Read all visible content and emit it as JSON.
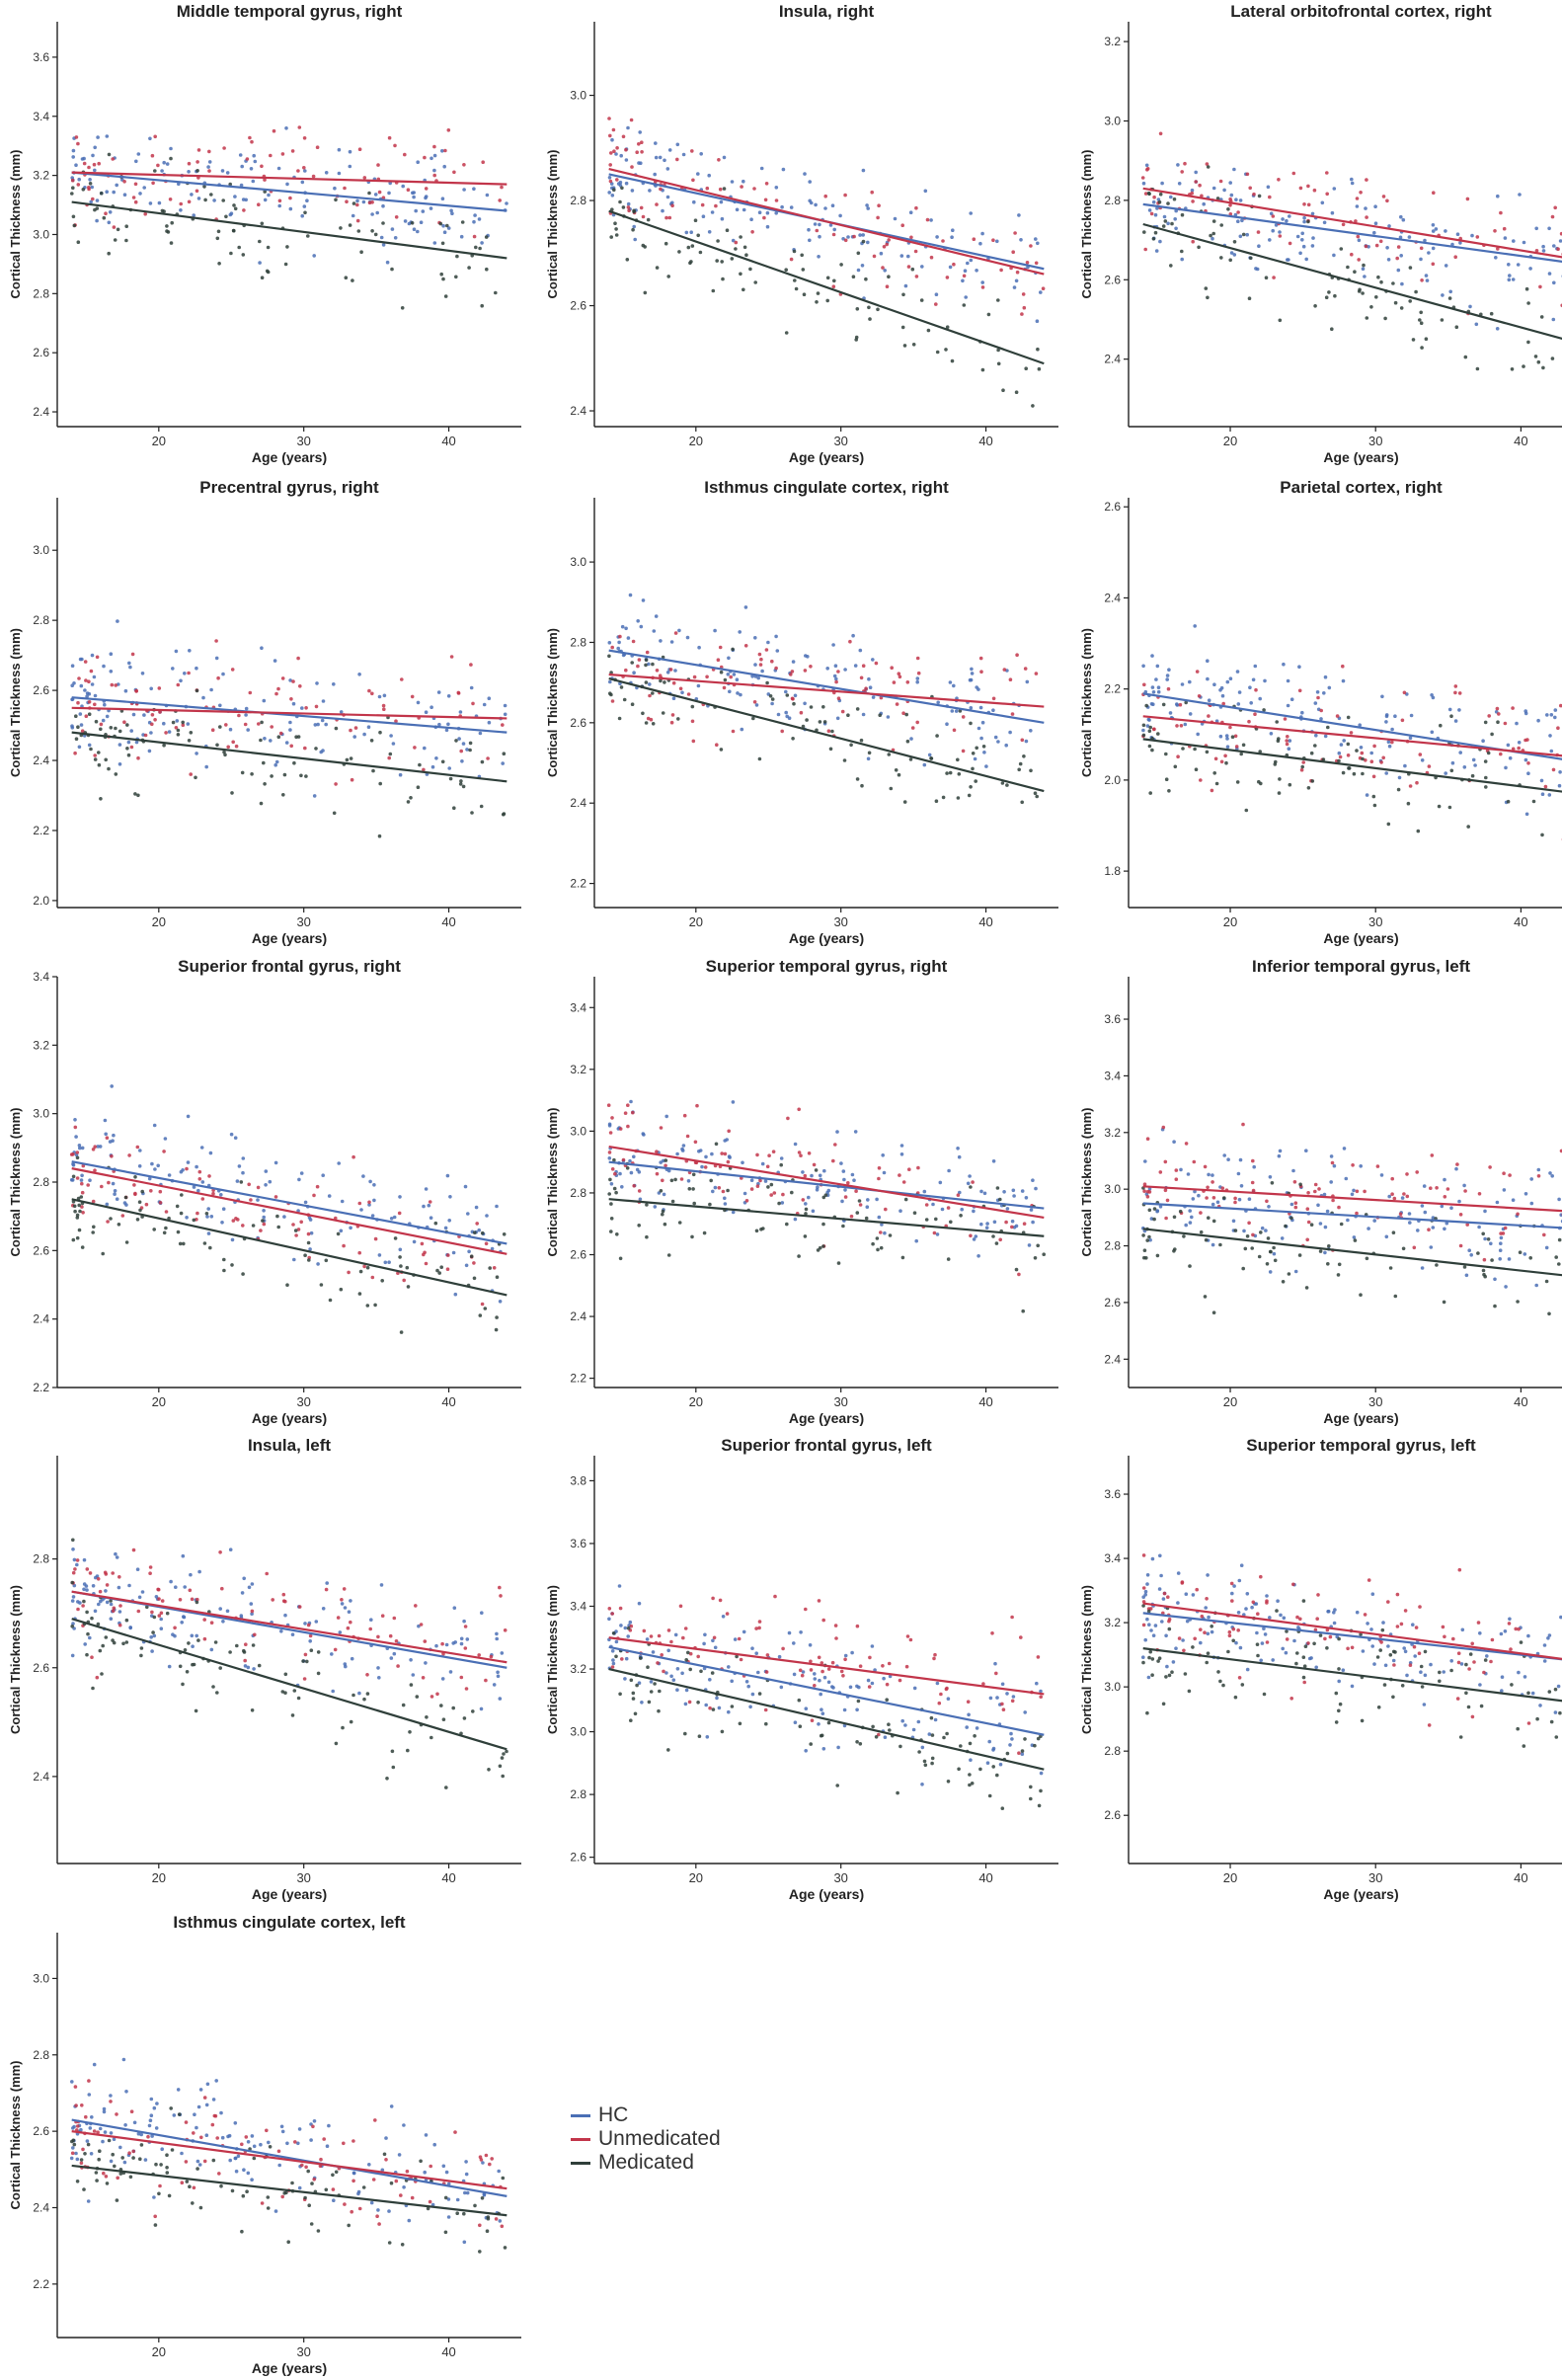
{
  "chart_data": [
    {
      "type": "scatter",
      "title": "Middle temporal gyrus, right",
      "xlabel": "Age (years)",
      "ylabel": "Cortical Thickness (mm)",
      "xlim": [
        13,
        45
      ],
      "ylim": [
        2.35,
        3.72
      ],
      "xticks": [
        20,
        30,
        40
      ],
      "yticks": [
        2.4,
        2.6,
        2.8,
        3.0,
        3.2,
        3.4,
        3.6
      ],
      "ytick_labels": [
        "2.4",
        "2.6",
        "2.8",
        "3.0",
        "3.2",
        "3.4",
        "3.6"
      ],
      "series": [
        {
          "name": "HC",
          "line": [
            [
              14,
              3.21
            ],
            [
              44,
              3.08
            ]
          ]
        },
        {
          "name": "Unmedicated",
          "line": [
            [
              14,
              3.21
            ],
            [
              44,
              3.17
            ]
          ]
        },
        {
          "name": "Medicated",
          "line": [
            [
              14,
              3.11
            ],
            [
              44,
              2.92
            ]
          ]
        }
      ]
    },
    {
      "type": "scatter",
      "title": "Insula, right",
      "xlabel": "Age (years)",
      "ylabel": "Cortical Thickness (mm)",
      "xlim": [
        13,
        45
      ],
      "ylim": [
        2.37,
        3.14
      ],
      "xticks": [
        20,
        30,
        40
      ],
      "yticks": [
        2.4,
        2.6,
        2.8,
        3.0
      ],
      "ytick_labels": [
        "2.4",
        "2.6",
        "2.8",
        "3.0"
      ],
      "series": [
        {
          "name": "HC",
          "line": [
            [
              14,
              2.85
            ],
            [
              44,
              2.67
            ]
          ]
        },
        {
          "name": "Unmedicated",
          "line": [
            [
              14,
              2.86
            ],
            [
              44,
              2.66
            ]
          ]
        },
        {
          "name": "Medicated",
          "line": [
            [
              14,
              2.78
            ],
            [
              44,
              2.49
            ]
          ]
        }
      ]
    },
    {
      "type": "scatter",
      "title": "Lateral orbitofrontal cortex, right",
      "xlabel": "Age (years)",
      "ylabel": "Cortical Thickness (mm)",
      "xlim": [
        13,
        45
      ],
      "ylim": [
        2.23,
        3.25
      ],
      "xticks": [
        20,
        30,
        40
      ],
      "yticks": [
        2.4,
        2.6,
        2.8,
        3.0,
        3.2
      ],
      "ytick_labels": [
        "2.4",
        "2.6",
        "2.8",
        "3.0",
        "3.2"
      ],
      "series": [
        {
          "name": "HC",
          "line": [
            [
              14,
              2.79
            ],
            [
              44,
              2.64
            ]
          ]
        },
        {
          "name": "Unmedicated",
          "line": [
            [
              14,
              2.83
            ],
            [
              44,
              2.65
            ]
          ]
        },
        {
          "name": "Medicated",
          "line": [
            [
              14,
              2.74
            ],
            [
              44,
              2.44
            ]
          ]
        }
      ]
    },
    {
      "type": "scatter",
      "title": "Precentral gyrus, right",
      "xlabel": "Age (years)",
      "ylabel": "Cortical Thickness (mm)",
      "xlim": [
        13,
        45
      ],
      "ylim": [
        1.98,
        3.15
      ],
      "xticks": [
        20,
        30,
        40
      ],
      "yticks": [
        2.0,
        2.2,
        2.4,
        2.6,
        2.8,
        3.0
      ],
      "ytick_labels": [
        "2.0",
        "2.2",
        "2.4",
        "2.6",
        "2.8",
        "3.0"
      ],
      "series": [
        {
          "name": "HC",
          "line": [
            [
              14,
              2.58
            ],
            [
              44,
              2.48
            ]
          ]
        },
        {
          "name": "Unmedicated",
          "line": [
            [
              14,
              2.55
            ],
            [
              44,
              2.52
            ]
          ]
        },
        {
          "name": "Medicated",
          "line": [
            [
              14,
              2.48
            ],
            [
              44,
              2.34
            ]
          ]
        }
      ]
    },
    {
      "type": "scatter",
      "title": "Isthmus cingulate cortex, right",
      "xlabel": "Age (years)",
      "ylabel": "Cortical Thickness (mm)",
      "xlim": [
        13,
        45
      ],
      "ylim": [
        2.14,
        3.16
      ],
      "xticks": [
        20,
        30,
        40
      ],
      "yticks": [
        2.2,
        2.4,
        2.6,
        2.8,
        3.0
      ],
      "ytick_labels": [
        "2.2",
        "2.4",
        "2.6",
        "2.8",
        "3.0"
      ],
      "series": [
        {
          "name": "HC",
          "line": [
            [
              14,
              2.78
            ],
            [
              44,
              2.6
            ]
          ]
        },
        {
          "name": "Unmedicated",
          "line": [
            [
              14,
              2.72
            ],
            [
              44,
              2.64
            ]
          ]
        },
        {
          "name": "Medicated",
          "line": [
            [
              14,
              2.71
            ],
            [
              44,
              2.43
            ]
          ]
        }
      ]
    },
    {
      "type": "scatter",
      "title": "Parietal cortex, right",
      "xlabel": "Age (years)",
      "ylabel": "Cortical Thickness (mm)",
      "xlim": [
        13,
        45
      ],
      "ylim": [
        1.72,
        2.62
      ],
      "xticks": [
        20,
        30,
        40
      ],
      "yticks": [
        1.8,
        2.0,
        2.2,
        2.4,
        2.6
      ],
      "ytick_labels": [
        "1.8",
        "2.0",
        "2.2",
        "2.4",
        "2.6"
      ],
      "series": [
        {
          "name": "HC",
          "line": [
            [
              14,
              2.19
            ],
            [
              44,
              2.04
            ]
          ]
        },
        {
          "name": "Unmedicated",
          "line": [
            [
              14,
              2.14
            ],
            [
              44,
              2.05
            ]
          ]
        },
        {
          "name": "Medicated",
          "line": [
            [
              14,
              2.09
            ],
            [
              44,
              1.97
            ]
          ]
        }
      ]
    },
    {
      "type": "scatter",
      "title": "Superior frontal gyrus, right",
      "xlabel": "Age (years)",
      "ylabel": "Cortical Thickness (mm)",
      "xlim": [
        13,
        45
      ],
      "ylim": [
        2.2,
        3.4
      ],
      "xticks": [
        20,
        30,
        40
      ],
      "yticks": [
        2.2,
        2.4,
        2.6,
        2.8,
        3.0,
        3.2,
        3.4
      ],
      "ytick_labels": [
        "2.2",
        "2.4",
        "2.6",
        "2.8",
        "3.0",
        "3.2",
        "3.4"
      ],
      "series": [
        {
          "name": "HC",
          "line": [
            [
              14,
              2.86
            ],
            [
              44,
              2.62
            ]
          ]
        },
        {
          "name": "Unmedicated",
          "line": [
            [
              14,
              2.84
            ],
            [
              44,
              2.59
            ]
          ]
        },
        {
          "name": "Medicated",
          "line": [
            [
              14,
              2.75
            ],
            [
              44,
              2.47
            ]
          ]
        }
      ]
    },
    {
      "type": "scatter",
      "title": "Superior temporal gyrus, right",
      "xlabel": "Age (years)",
      "ylabel": "Cortical Thickness (mm)",
      "xlim": [
        13,
        45
      ],
      "ylim": [
        2.17,
        3.5
      ],
      "xticks": [
        20,
        30,
        40
      ],
      "yticks": [
        2.2,
        2.4,
        2.6,
        2.8,
        3.0,
        3.2,
        3.4
      ],
      "ytick_labels": [
        "2.2",
        "2.4",
        "2.6",
        "2.8",
        "3.0",
        "3.2",
        "3.4"
      ],
      "series": [
        {
          "name": "HC",
          "line": [
            [
              14,
              2.9
            ],
            [
              44,
              2.75
            ]
          ]
        },
        {
          "name": "Unmedicated",
          "line": [
            [
              14,
              2.95
            ],
            [
              44,
              2.72
            ]
          ]
        },
        {
          "name": "Medicated",
          "line": [
            [
              14,
              2.78
            ],
            [
              44,
              2.66
            ]
          ]
        }
      ]
    },
    {
      "type": "scatter",
      "title": "Inferior temporal gyrus, left",
      "xlabel": "Age (years)",
      "ylabel": "Cortical Thickness (mm)",
      "xlim": [
        13,
        45
      ],
      "ylim": [
        2.3,
        3.75
      ],
      "xticks": [
        20,
        30,
        40
      ],
      "yticks": [
        2.4,
        2.6,
        2.8,
        3.0,
        3.2,
        3.4,
        3.6
      ],
      "ytick_labels": [
        "2.4",
        "2.6",
        "2.8",
        "3.0",
        "3.2",
        "3.4",
        "3.6"
      ],
      "series": [
        {
          "name": "HC",
          "line": [
            [
              14,
              2.95
            ],
            [
              44,
              2.86
            ]
          ]
        },
        {
          "name": "Unmedicated",
          "line": [
            [
              14,
              3.01
            ],
            [
              44,
              2.92
            ]
          ]
        },
        {
          "name": "Medicated",
          "line": [
            [
              14,
              2.86
            ],
            [
              44,
              2.69
            ]
          ]
        }
      ]
    },
    {
      "type": "scatter",
      "title": "Insula, left",
      "xlabel": "Age (years)",
      "ylabel": "Cortical Thickness (mm)",
      "xlim": [
        13,
        45
      ],
      "ylim": [
        2.24,
        2.99
      ],
      "xticks": [
        20,
        30,
        40
      ],
      "yticks": [
        2.4,
        2.6,
        2.8
      ],
      "ytick_labels": [
        "2.4",
        "2.6",
        "2.8"
      ],
      "series": [
        {
          "name": "HC",
          "line": [
            [
              14,
              2.74
            ],
            [
              44,
              2.6
            ]
          ]
        },
        {
          "name": "Unmedicated",
          "line": [
            [
              14,
              2.74
            ],
            [
              44,
              2.61
            ]
          ]
        },
        {
          "name": "Medicated",
          "line": [
            [
              14,
              2.69
            ],
            [
              44,
              2.45
            ]
          ]
        }
      ]
    },
    {
      "type": "scatter",
      "title": "Superior frontal gyrus, left",
      "xlabel": "Age (years)",
      "ylabel": "Cortical Thickness (mm)",
      "xlim": [
        13,
        45
      ],
      "ylim": [
        2.58,
        3.88
      ],
      "xticks": [
        20,
        30,
        40
      ],
      "yticks": [
        2.6,
        2.8,
        3.0,
        3.2,
        3.4,
        3.6,
        3.8
      ],
      "ytick_labels": [
        "2.6",
        "2.8",
        "3.0",
        "3.2",
        "3.4",
        "3.6",
        "3.8"
      ],
      "series": [
        {
          "name": "HC",
          "line": [
            [
              14,
              3.27
            ],
            [
              44,
              2.99
            ]
          ]
        },
        {
          "name": "Unmedicated",
          "line": [
            [
              14,
              3.3
            ],
            [
              44,
              3.12
            ]
          ]
        },
        {
          "name": "Medicated",
          "line": [
            [
              14,
              3.2
            ],
            [
              44,
              2.88
            ]
          ]
        }
      ]
    },
    {
      "type": "scatter",
      "title": "Superior temporal gyrus, left",
      "xlabel": "Age (years)",
      "ylabel": "Cortical Thickness (mm)",
      "xlim": [
        13,
        45
      ],
      "ylim": [
        2.45,
        3.72
      ],
      "xticks": [
        20,
        30,
        40
      ],
      "yticks": [
        2.6,
        2.8,
        3.0,
        3.2,
        3.4,
        3.6
      ],
      "ytick_labels": [
        "2.6",
        "2.8",
        "3.0",
        "3.2",
        "3.4",
        "3.6"
      ],
      "series": [
        {
          "name": "HC",
          "line": [
            [
              14,
              3.23
            ],
            [
              44,
              3.08
            ]
          ]
        },
        {
          "name": "Unmedicated",
          "line": [
            [
              14,
              3.26
            ],
            [
              44,
              3.08
            ]
          ]
        },
        {
          "name": "Medicated",
          "line": [
            [
              14,
              3.12
            ],
            [
              44,
              2.95
            ]
          ]
        }
      ]
    },
    {
      "type": "scatter",
      "title": "Isthmus cingulate cortex, left",
      "xlabel": "Age (years)",
      "ylabel": "Cortical Thickness (mm)",
      "xlim": [
        13,
        45
      ],
      "ylim": [
        2.06,
        3.12
      ],
      "xticks": [
        20,
        30,
        40
      ],
      "yticks": [
        2.2,
        2.4,
        2.6,
        2.8,
        3.0
      ],
      "ytick_labels": [
        "2.2",
        "2.4",
        "2.6",
        "2.8",
        "3.0"
      ],
      "series": [
        {
          "name": "HC",
          "line": [
            [
              14,
              2.63
            ],
            [
              44,
              2.43
            ]
          ]
        },
        {
          "name": "Unmedicated",
          "line": [
            [
              14,
              2.6
            ],
            [
              44,
              2.45
            ]
          ]
        },
        {
          "name": "Medicated",
          "line": [
            [
              14,
              2.51
            ],
            [
              44,
              2.38
            ]
          ]
        }
      ]
    }
  ],
  "legend": {
    "items": [
      {
        "name": "HC",
        "color": "#4a6fb5"
      },
      {
        "name": "Unmedicated",
        "color": "#c2354a"
      },
      {
        "name": "Medicated",
        "color": "#2f3f3a"
      }
    ]
  },
  "colors": {
    "HC": "#4a6fb5",
    "Unmedicated": "#c2354a",
    "Medicated": "#2f3f3a"
  }
}
